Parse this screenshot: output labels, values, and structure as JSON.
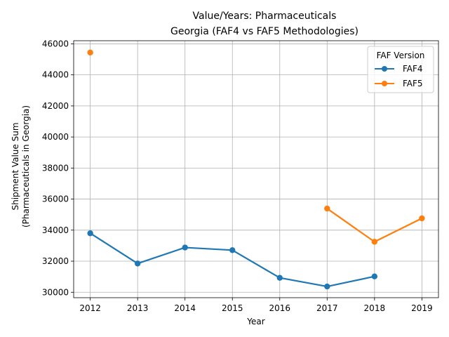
{
  "chart_data": {
    "type": "line",
    "title_lines": [
      "Value/Years: Pharmaceuticals",
      "Georgia (FAF4 vs FAF5 Methodologies)"
    ],
    "xlabel": "Year",
    "ylabel_lines": [
      "Shipment Value Sum",
      "(Pharmaceuticals in Georgia)"
    ],
    "x_ticks": [
      "2012",
      "2013",
      "2014",
      "2015",
      "2016",
      "2017",
      "2018",
      "2019"
    ],
    "y_ticks": [
      "30000",
      "32000",
      "34000",
      "36000",
      "38000",
      "40000",
      "42000",
      "44000",
      "46000"
    ],
    "xlim": [
      2011.65,
      2019.35
    ],
    "ylim": [
      29650,
      46200
    ],
    "grid": true,
    "legend": {
      "title": "FAF Version",
      "placement": "top-right"
    },
    "series": [
      {
        "name": "FAF4",
        "color": "#1f77b4",
        "points": [
          {
            "x": 2012,
            "y": 33800
          },
          {
            "x": 2013,
            "y": 31850
          },
          {
            "x": 2014,
            "y": 32880
          },
          {
            "x": 2015,
            "y": 32710
          },
          {
            "x": 2016,
            "y": 30930
          },
          {
            "x": 2017,
            "y": 30370
          },
          {
            "x": 2018,
            "y": 31020
          }
        ]
      },
      {
        "name": "FAF5",
        "color": "#ff7f0e",
        "points": [
          {
            "x": 2012,
            "y": 45440
          },
          {
            "x": 2017,
            "y": 35390
          },
          {
            "x": 2018,
            "y": 33250
          },
          {
            "x": 2019,
            "y": 34760
          }
        ],
        "breaks_after_index": [
          0
        ]
      }
    ]
  }
}
